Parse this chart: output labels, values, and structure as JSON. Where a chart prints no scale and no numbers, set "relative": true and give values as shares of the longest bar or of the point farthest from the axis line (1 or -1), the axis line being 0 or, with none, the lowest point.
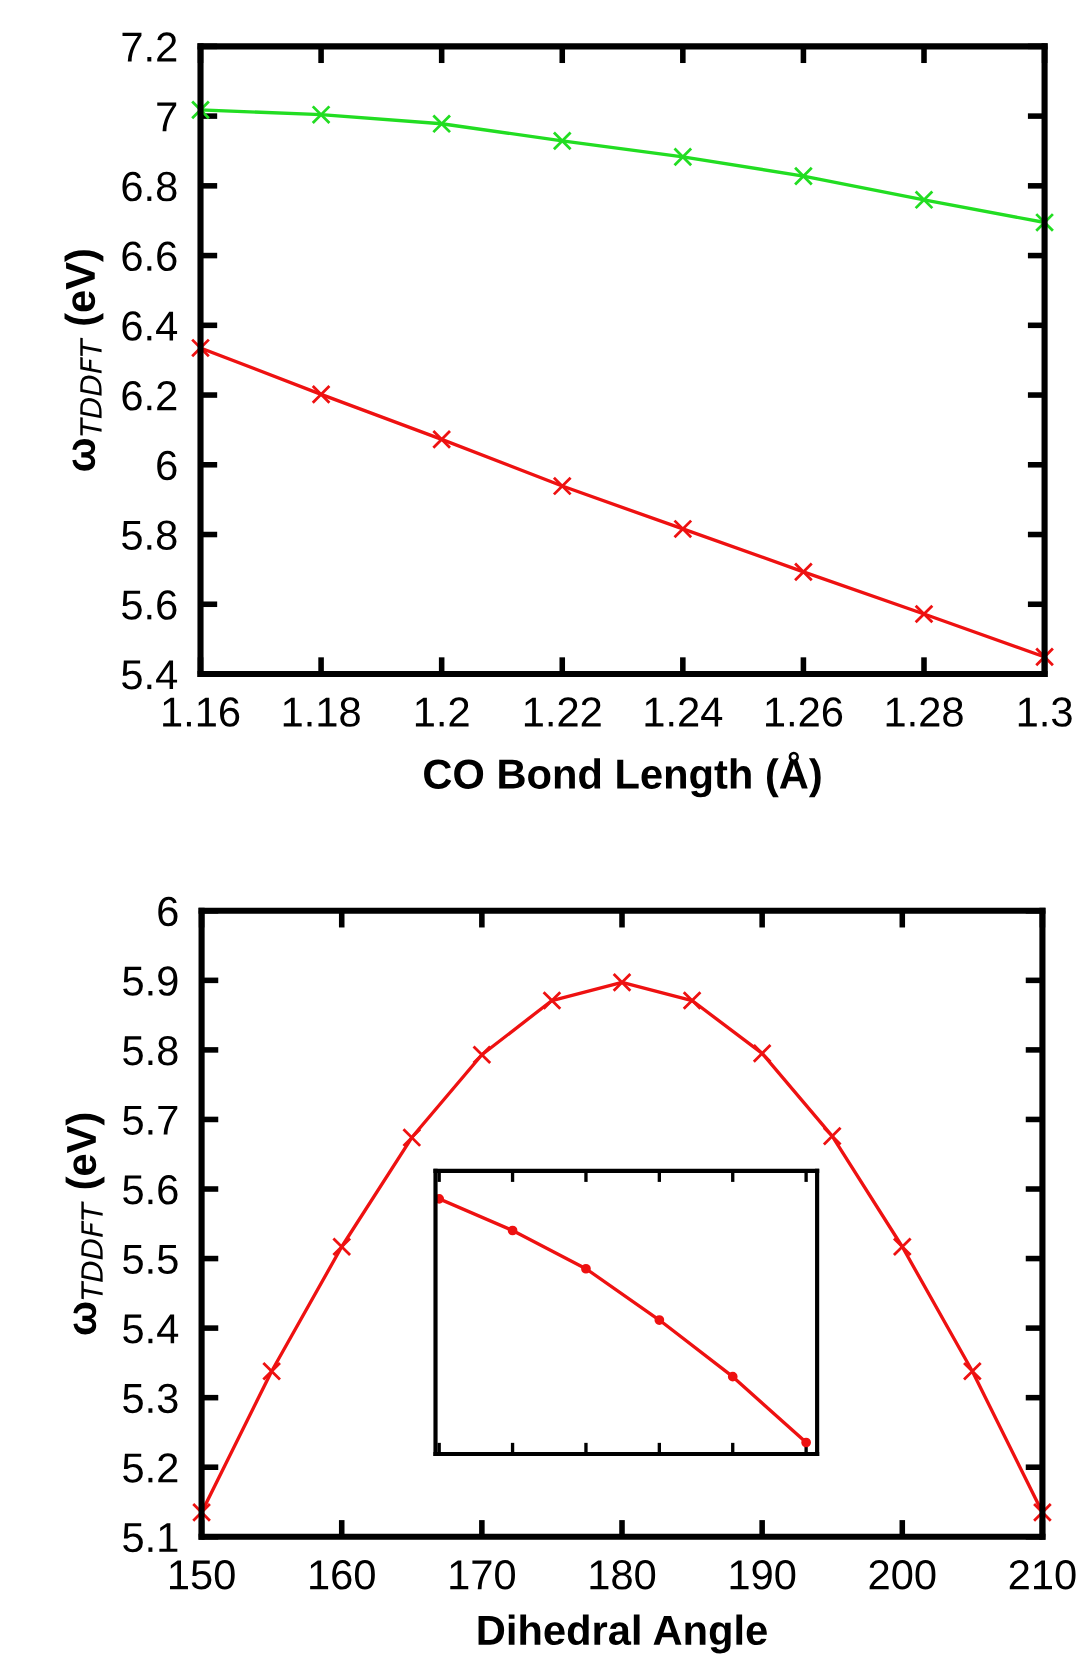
{
  "chart_data": [
    {
      "type": "line",
      "xlabel": "CO Bond Length (Å)",
      "ylabel": "ω$_{TDDFT}$ (eV)",
      "x": [
        1.16,
        1.18,
        1.2,
        1.22,
        1.24,
        1.26,
        1.28,
        1.3
      ],
      "series": [
        {
          "color": "#22dd22",
          "marker": "cross",
          "values": [
            7.018,
            7.004,
            6.978,
            6.929,
            6.883,
            6.828,
            6.76,
            6.695
          ]
        },
        {
          "color": "#ee1111",
          "marker": "cross",
          "values": [
            6.335,
            6.202,
            6.073,
            5.939,
            5.816,
            5.693,
            5.572,
            5.449
          ]
        }
      ],
      "xlim": [
        1.16,
        1.3
      ],
      "xticks": [
        1.16,
        1.18,
        1.2,
        1.22,
        1.24,
        1.26,
        1.28,
        1.3
      ],
      "ylim": [
        5.4,
        7.2
      ],
      "yticks": [
        5.4,
        5.6,
        5.8,
        6,
        6.2,
        6.4,
        6.6,
        6.8,
        7,
        7.2
      ],
      "grid": false,
      "legend": false
    },
    {
      "type": "line",
      "xlabel": "Dihedral Angle",
      "ylabel": "ω$_{TDDFT}$ (eV)",
      "x": [
        150,
        155,
        160,
        165,
        170,
        175,
        180,
        185,
        190,
        195,
        200,
        205,
        210
      ],
      "series": [
        {
          "color": "#ee1111",
          "marker": "cross",
          "values": [
            5.135,
            5.338,
            5.517,
            5.674,
            5.793,
            5.871,
            5.897,
            5.871,
            5.795,
            5.676,
            5.517,
            5.338,
            5.135
          ]
        }
      ],
      "xlim": [
        150,
        210
      ],
      "xticks": [
        150,
        160,
        170,
        180,
        190,
        200,
        210
      ],
      "ylim": [
        5.1,
        6
      ],
      "yticks": [
        5.1,
        5.2,
        5.3,
        5.4,
        5.5,
        5.6,
        5.7,
        5.8,
        5.9,
        6
      ],
      "grid": false,
      "legend": false
    },
    {
      "type": "line",
      "relative": true,
      "categories": [
        null,
        null,
        null,
        null,
        null,
        null
      ],
      "series": [
        {
          "color": "#ee1111",
          "marker": "circle",
          "values": [
            1,
            0.876,
            0.726,
            0.525,
            0.303,
            0.045
          ]
        }
      ],
      "tick_labels": false,
      "grid": false,
      "legend": false
    }
  ]
}
